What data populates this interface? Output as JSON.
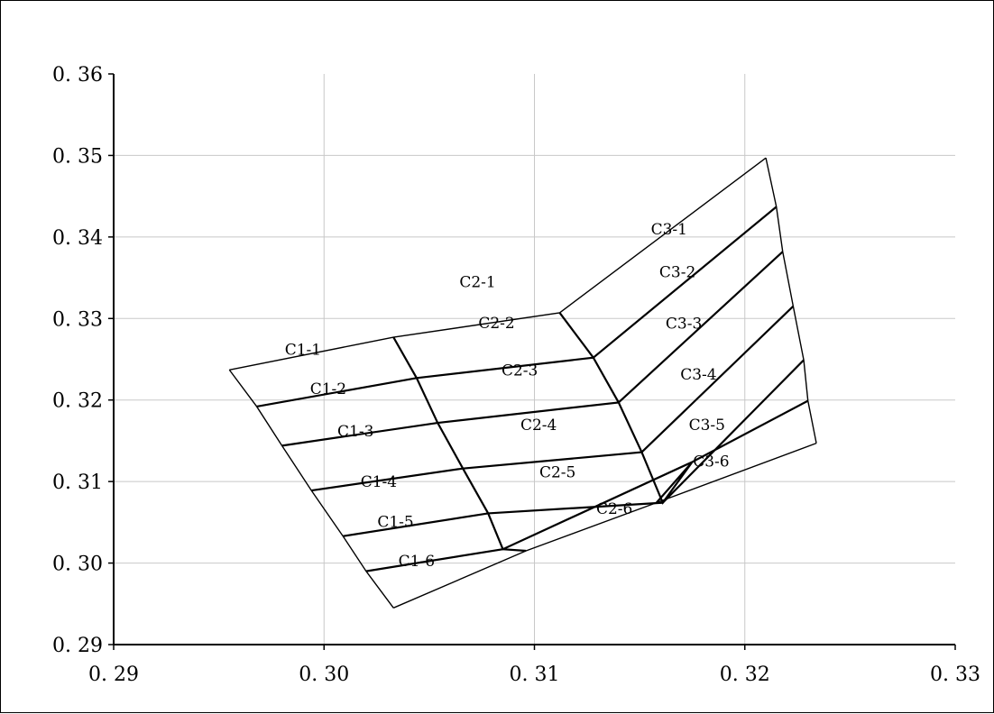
{
  "chart_data": {
    "type": "scatter",
    "title": "",
    "xlabel": "",
    "ylabel": "",
    "xlim": [
      0.29,
      0.33
    ],
    "ylim": [
      0.29,
      0.36
    ],
    "grid": true,
    "x_ticks": [
      0.29,
      0.3,
      0.31,
      0.32,
      0.33
    ],
    "y_ticks": [
      0.29,
      0.3,
      0.31,
      0.32,
      0.33,
      0.34,
      0.35,
      0.36
    ],
    "x_tick_labels": [
      "0. 29",
      "0. 30",
      "0. 31",
      "0. 32",
      "0. 33"
    ],
    "y_tick_labels": [
      "0. 29",
      "0. 30",
      "0. 31",
      "0. 32",
      "0. 33",
      "0. 34",
      "0. 35",
      "0. 36"
    ],
    "grid_nodes": [
      [
        [
          0.2955,
          0.3237
        ],
        [
          0.3033,
          0.3277
        ],
        [
          0.3112,
          0.3307
        ],
        [
          0.321,
          0.3497
        ]
      ],
      [
        [
          0.2968,
          0.3192
        ],
        [
          0.3044,
          0.3227
        ],
        [
          0.3128,
          0.3252
        ],
        [
          0.3215,
          0.3437
        ]
      ],
      [
        [
          0.298,
          0.3144
        ],
        [
          0.3054,
          0.3172
        ],
        [
          0.314,
          0.3197
        ],
        [
          0.3218,
          0.3382
        ]
      ],
      [
        [
          0.2994,
          0.3089
        ],
        [
          0.3066,
          0.3116
        ],
        [
          0.3151,
          0.3136
        ],
        [
          0.3223,
          0.3315
        ]
      ],
      [
        [
          0.3009,
          0.3033
        ],
        [
          0.3078,
          0.3061
        ],
        [
          0.3161,
          0.3074
        ],
        [
          0.3228,
          0.3249
        ]
      ],
      [
        [
          0.302,
          0.299
        ],
        [
          0.3085,
          0.3017
        ],
        [
          0.3175,
          0.3124
        ],
        [
          0.323,
          0.3199
        ]
      ],
      [
        [
          0.3033,
          0.2945
        ],
        [
          0.3096,
          0.3015
        ],
        [
          0.3158,
          0.3074
        ],
        [
          0.3234,
          0.3147
        ]
      ]
    ],
    "regions": [
      {
        "label": "C1-1",
        "x": 0.299,
        "y": 0.3262
      },
      {
        "label": "C1-2",
        "x": 0.3002,
        "y": 0.3214
      },
      {
        "label": "C1-3",
        "x": 0.3015,
        "y": 0.3162
      },
      {
        "label": "C1-4",
        "x": 0.3026,
        "y": 0.31
      },
      {
        "label": "C1-5",
        "x": 0.3034,
        "y": 0.3051
      },
      {
        "label": "C1-6",
        "x": 0.3044,
        "y": 0.3003
      },
      {
        "label": "C2-1",
        "x": 0.3073,
        "y": 0.3345
      },
      {
        "label": "C2-2",
        "x": 0.3082,
        "y": 0.3295
      },
      {
        "label": "C2-3",
        "x": 0.3093,
        "y": 0.3237
      },
      {
        "label": "C2-4",
        "x": 0.3102,
        "y": 0.317
      },
      {
        "label": "C2-5",
        "x": 0.3111,
        "y": 0.3112
      },
      {
        "label": "C2-6",
        "x": 0.3138,
        "y": 0.3067
      },
      {
        "label": "C3-1",
        "x": 0.3164,
        "y": 0.341
      },
      {
        "label": "C3-2",
        "x": 0.3168,
        "y": 0.3357
      },
      {
        "label": "C3-3",
        "x": 0.3171,
        "y": 0.3294
      },
      {
        "label": "C3-4",
        "x": 0.3178,
        "y": 0.3232
      },
      {
        "label": "C3-5",
        "x": 0.3182,
        "y": 0.317
      },
      {
        "label": "C3-6",
        "x": 0.3184,
        "y": 0.3125
      }
    ]
  }
}
